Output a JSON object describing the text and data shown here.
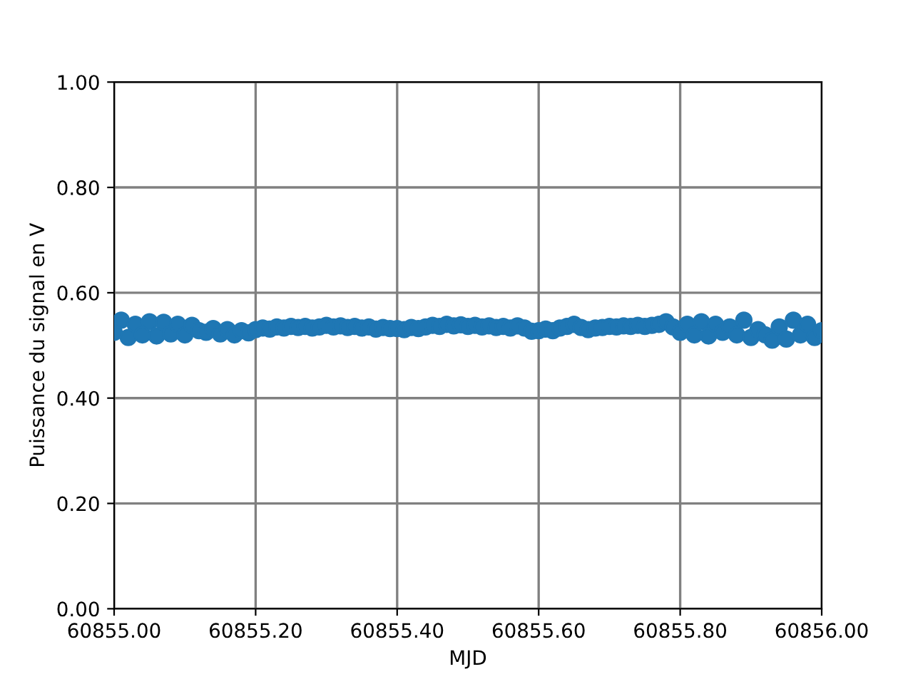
{
  "chart_data": {
    "type": "scatter",
    "xlabel": "MJD",
    "ylabel": "Puissance du signal en V",
    "x": [
      60855.0,
      60855.01,
      60855.02,
      60855.03,
      60855.04,
      60855.05,
      60855.06,
      60855.07,
      60855.08,
      60855.09,
      60855.1,
      60855.11,
      60855.12,
      60855.13,
      60855.14,
      60855.15,
      60855.16,
      60855.17,
      60855.18,
      60855.19,
      60855.2,
      60855.21,
      60855.22,
      60855.23,
      60855.24,
      60855.25,
      60855.26,
      60855.27,
      60855.28,
      60855.29,
      60855.3,
      60855.31,
      60855.32,
      60855.33,
      60855.34,
      60855.35,
      60855.36,
      60855.37,
      60855.38,
      60855.39,
      60855.4,
      60855.41,
      60855.42,
      60855.43,
      60855.44,
      60855.45,
      60855.46,
      60855.47,
      60855.48,
      60855.49,
      60855.5,
      60855.51,
      60855.52,
      60855.53,
      60855.54,
      60855.55,
      60855.56,
      60855.57,
      60855.58,
      60855.59,
      60855.6,
      60855.61,
      60855.62,
      60855.63,
      60855.64,
      60855.65,
      60855.66,
      60855.67,
      60855.68,
      60855.69,
      60855.7,
      60855.71,
      60855.72,
      60855.73,
      60855.74,
      60855.75,
      60855.76,
      60855.77,
      60855.78,
      60855.79,
      60855.8,
      60855.81,
      60855.82,
      60855.83,
      60855.84,
      60855.85,
      60855.86,
      60855.87,
      60855.88,
      60855.89,
      60855.9,
      60855.91,
      60855.92,
      60855.93,
      60855.94,
      60855.95,
      60855.96,
      60855.97,
      60855.98,
      60855.99,
      60856.0
    ],
    "series": [
      {
        "color": "#1f77b4",
        "values": [
          0.525,
          0.548,
          0.515,
          0.54,
          0.52,
          0.545,
          0.518,
          0.544,
          0.522,
          0.54,
          0.52,
          0.538,
          0.528,
          0.525,
          0.532,
          0.522,
          0.53,
          0.52,
          0.528,
          0.524,
          0.53,
          0.533,
          0.531,
          0.535,
          0.533,
          0.536,
          0.534,
          0.536,
          0.533,
          0.535,
          0.538,
          0.535,
          0.537,
          0.534,
          0.536,
          0.533,
          0.535,
          0.531,
          0.534,
          0.532,
          0.532,
          0.53,
          0.534,
          0.532,
          0.535,
          0.538,
          0.536,
          0.54,
          0.537,
          0.539,
          0.536,
          0.538,
          0.535,
          0.537,
          0.534,
          0.536,
          0.533,
          0.537,
          0.533,
          0.527,
          0.528,
          0.531,
          0.528,
          0.533,
          0.536,
          0.54,
          0.534,
          0.53,
          0.533,
          0.534,
          0.536,
          0.535,
          0.537,
          0.536,
          0.538,
          0.536,
          0.538,
          0.54,
          0.545,
          0.535,
          0.525,
          0.54,
          0.52,
          0.545,
          0.518,
          0.54,
          0.525,
          0.535,
          0.52,
          0.548,
          0.515,
          0.53,
          0.52,
          0.51,
          0.535,
          0.512,
          0.548,
          0.52,
          0.54,
          0.515,
          0.528
        ]
      }
    ],
    "marker": "circle",
    "grid": true,
    "xlim": [
      60855.0,
      60856.0
    ],
    "xticks": [
      {
        "value": 60855.0,
        "label": "60855.00"
      },
      {
        "value": 60855.2,
        "label": "60855.20"
      },
      {
        "value": 60855.4,
        "label": "60855.40"
      },
      {
        "value": 60855.6,
        "label": "60855.60"
      },
      {
        "value": 60855.8,
        "label": "60855.80"
      },
      {
        "value": 60856.0,
        "label": "60856.00"
      }
    ],
    "ylim": [
      0,
      1
    ],
    "yticks": [
      {
        "value": 0,
        "label": "0.00"
      },
      {
        "value": 0.2,
        "label": "0.20"
      },
      {
        "value": 0.4,
        "label": "0.40"
      },
      {
        "value": 0.6,
        "label": "0.60"
      },
      {
        "value": 0.8,
        "label": "0.80"
      },
      {
        "value": 1,
        "label": "1.00"
      }
    ]
  }
}
